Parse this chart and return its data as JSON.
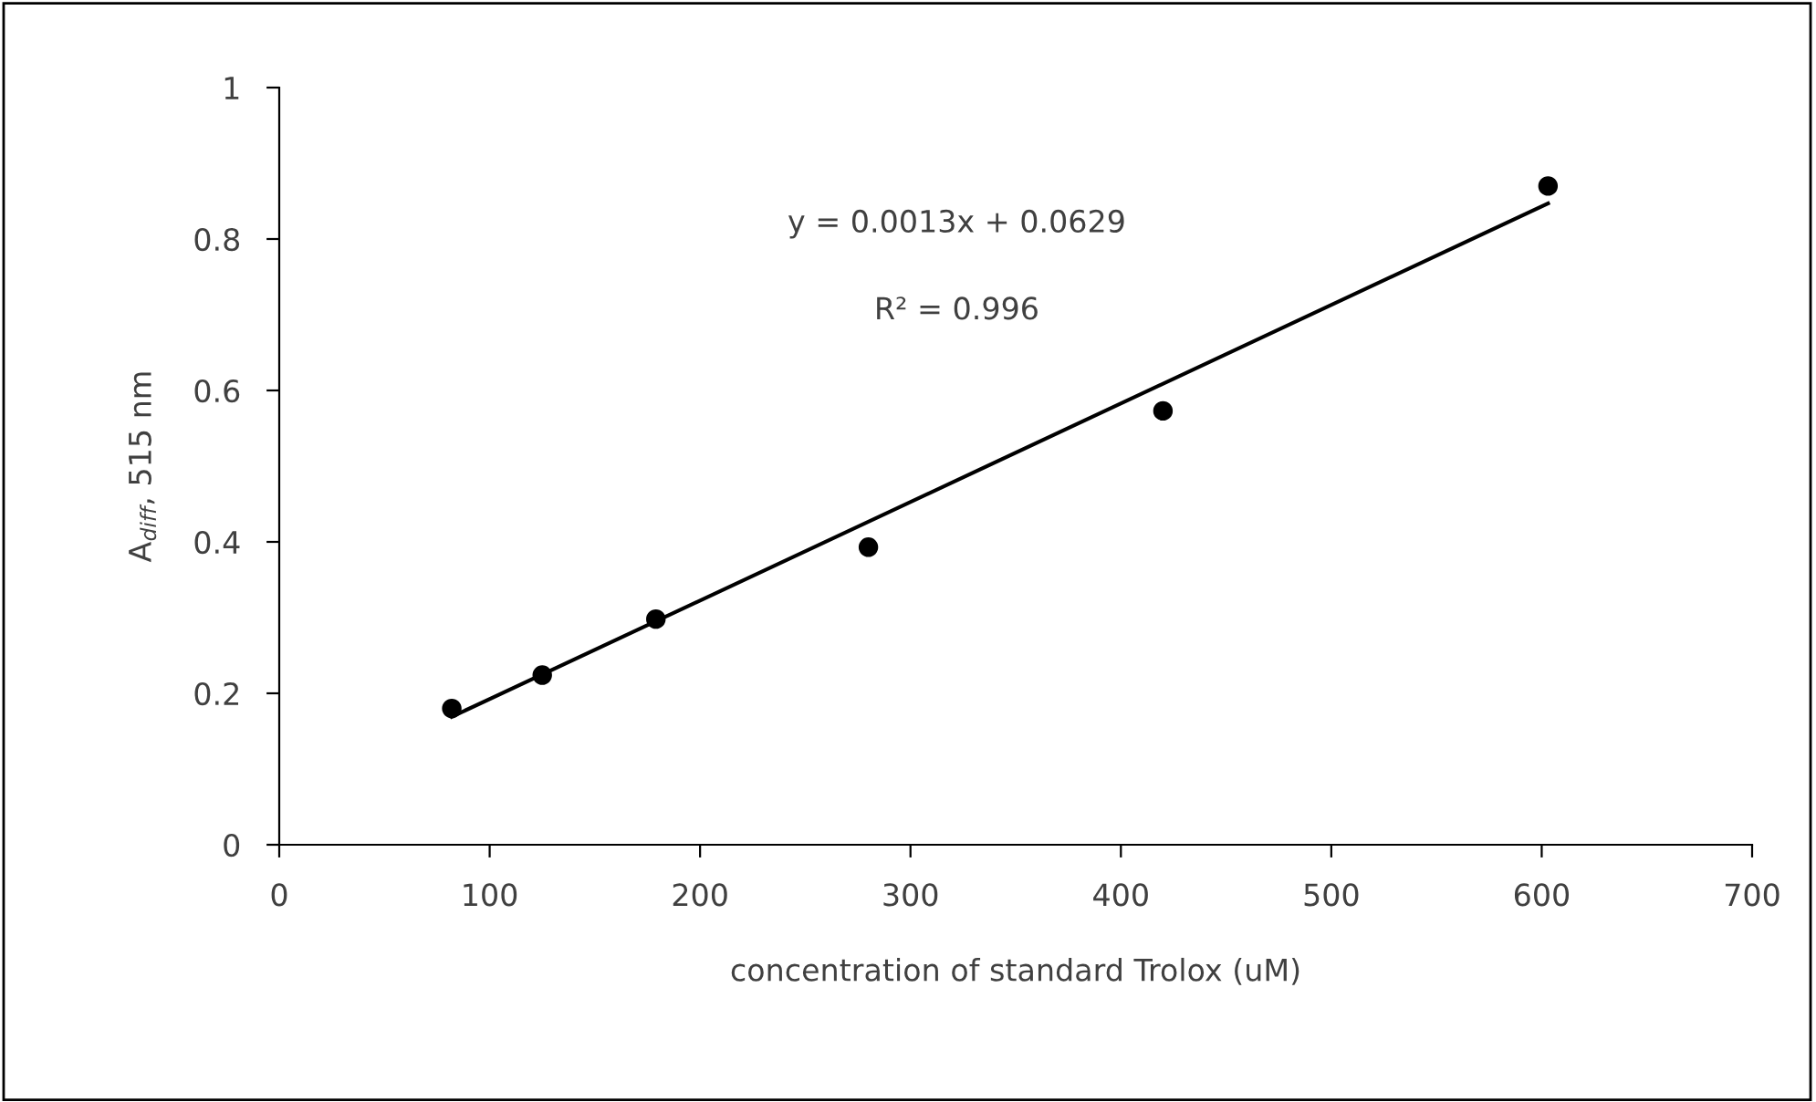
{
  "chart_data": {
    "type": "scatter",
    "xlabel": "concentration of standard Trolox (uM)",
    "ylabel": "A$_{diff}$, 515 nm",
    "annotations": [
      "y = 0.0013x + 0.0629",
      "R² = 0.996"
    ],
    "series": [
      {
        "color": "#000000",
        "marker": "circle",
        "x": [
          82,
          125,
          179,
          280,
          420,
          603
        ],
        "values": [
          0.18,
          0.224,
          0.298,
          0.393,
          0.573,
          0.87
        ]
      },
      {
        "type": "line",
        "color": "#000000",
        "line_style": "solid",
        "x": [
          82,
          603
        ],
        "values": [
          0.169,
          0.847
        ]
      }
    ],
    "xlim": [
      0,
      700
    ],
    "xticks": [
      0,
      100,
      200,
      300,
      400,
      500,
      600,
      700
    ],
    "ylim": [
      0,
      1
    ],
    "yticks": [
      0,
      0.2,
      0.4,
      0.6,
      0.8,
      1
    ],
    "grid": false,
    "legend": false
  }
}
